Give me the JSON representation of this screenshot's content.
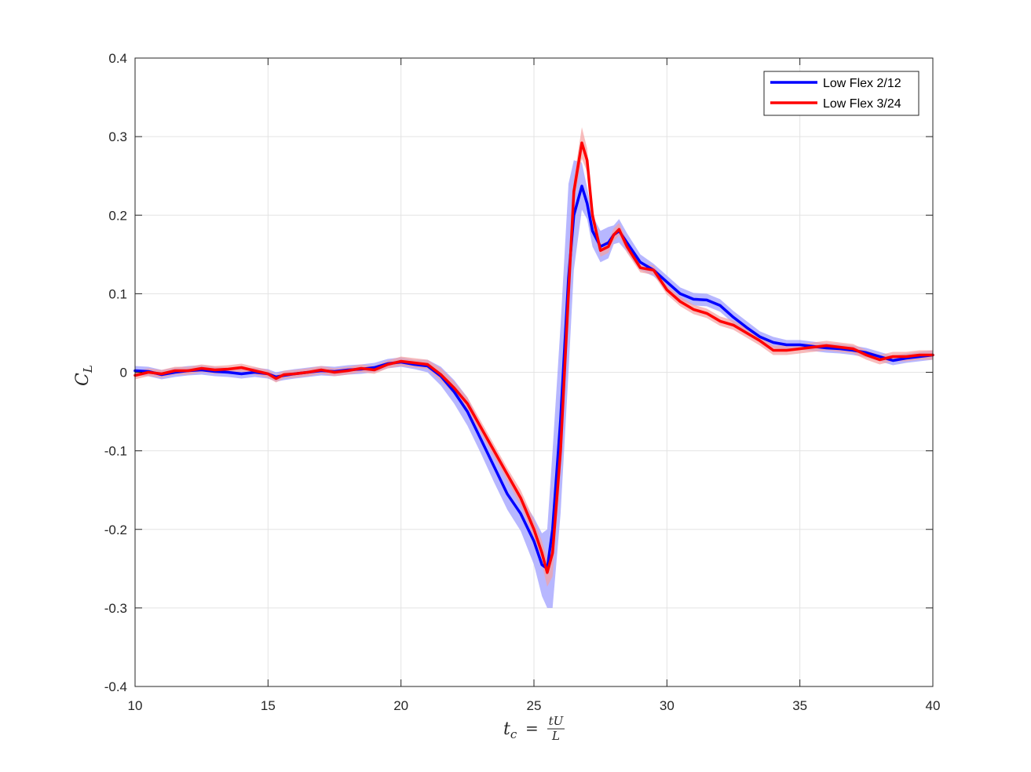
{
  "chart_data": {
    "type": "line",
    "title": "",
    "xlabel": {
      "base": "t",
      "sub": "c",
      "frac_num": "tU",
      "frac_den": "L"
    },
    "ylabel": {
      "base": "C",
      "sub": "L"
    },
    "xlim": [
      10,
      40
    ],
    "ylim": [
      -0.4,
      0.4
    ],
    "xticks": [
      10,
      15,
      20,
      25,
      30,
      35,
      40
    ],
    "yticks": [
      -0.4,
      -0.3,
      -0.2,
      -0.1,
      0,
      0.1,
      0.2,
      0.3,
      0.4
    ],
    "xtick_labels": [
      "10",
      "15",
      "20",
      "25",
      "30",
      "35",
      "40"
    ],
    "ytick_labels": [
      "-0.4",
      "-0.3",
      "-0.2",
      "-0.1",
      "0",
      "0.1",
      "0.2",
      "0.3",
      "0.4"
    ],
    "grid": true,
    "legend_position": "top-right",
    "series": [
      {
        "name": "Low Flex 2/12",
        "color": "#0000ff",
        "band_color": "#9999ff",
        "x": [
          10,
          10.5,
          11,
          11.5,
          12,
          12.5,
          13,
          13.5,
          14,
          14.5,
          15,
          15.3,
          15.6,
          16,
          16.5,
          17,
          17.5,
          18,
          18.5,
          19,
          19.5,
          20,
          20.5,
          21,
          21.5,
          22,
          22.5,
          23,
          23.5,
          24,
          24.5,
          25,
          25.3,
          25.5,
          25.7,
          26,
          26.3,
          26.5,
          26.8,
          27,
          27.2,
          27.5,
          27.8,
          28,
          28.2,
          28.5,
          29,
          29.5,
          30,
          30.5,
          31,
          31.5,
          32,
          32.5,
          33,
          33.5,
          34,
          34.5,
          35,
          35.5,
          36,
          36.5,
          37,
          37.5,
          38,
          38.5,
          39,
          39.5,
          40
        ],
        "y": [
          0.002,
          0.001,
          -0.003,
          0.0,
          0.002,
          0.003,
          0.001,
          0.0,
          -0.002,
          0.0,
          -0.002,
          -0.006,
          -0.004,
          -0.002,
          0.0,
          0.002,
          0.001,
          0.003,
          0.004,
          0.006,
          0.011,
          0.013,
          0.01,
          0.008,
          -0.005,
          -0.025,
          -0.05,
          -0.085,
          -0.12,
          -0.155,
          -0.18,
          -0.215,
          -0.245,
          -0.25,
          -0.2,
          -0.06,
          0.12,
          0.2,
          0.237,
          0.215,
          0.18,
          0.16,
          0.165,
          0.175,
          0.18,
          0.165,
          0.14,
          0.13,
          0.115,
          0.1,
          0.093,
          0.092,
          0.085,
          0.07,
          0.057,
          0.045,
          0.038,
          0.035,
          0.035,
          0.033,
          0.031,
          0.03,
          0.028,
          0.025,
          0.02,
          0.015,
          0.018,
          0.02,
          0.022
        ],
        "band": [
          0.006,
          0.006,
          0.006,
          0.006,
          0.006,
          0.006,
          0.006,
          0.006,
          0.006,
          0.006,
          0.006,
          0.006,
          0.006,
          0.006,
          0.006,
          0.006,
          0.006,
          0.006,
          0.006,
          0.006,
          0.006,
          0.006,
          0.006,
          0.008,
          0.012,
          0.015,
          0.018,
          0.018,
          0.02,
          0.02,
          0.022,
          0.03,
          0.04,
          0.05,
          0.1,
          0.12,
          0.12,
          0.07,
          0.03,
          0.02,
          0.02,
          0.02,
          0.02,
          0.012,
          0.015,
          0.012,
          0.01,
          0.008,
          0.008,
          0.008,
          0.008,
          0.008,
          0.008,
          0.008,
          0.008,
          0.007,
          0.007,
          0.006,
          0.006,
          0.006,
          0.006,
          0.006,
          0.006,
          0.006,
          0.006,
          0.006,
          0.006,
          0.006,
          0.006
        ]
      },
      {
        "name": "Low Flex 3/24",
        "color": "#ff0000",
        "band_color": "#f5a0a0",
        "x": [
          10,
          10.5,
          11,
          11.5,
          12,
          12.5,
          13,
          13.5,
          14,
          14.5,
          15,
          15.3,
          15.6,
          16,
          16.5,
          17,
          17.5,
          18,
          18.5,
          19,
          19.5,
          20,
          20.5,
          21,
          21.5,
          22,
          22.5,
          23,
          23.5,
          24,
          24.5,
          25,
          25.3,
          25.5,
          25.7,
          26,
          26.3,
          26.5,
          26.8,
          27,
          27.2,
          27.5,
          27.8,
          28,
          28.2,
          28.5,
          29,
          29.5,
          30,
          30.5,
          31,
          31.5,
          32,
          32.5,
          33,
          33.5,
          34,
          34.5,
          35,
          35.5,
          36,
          36.5,
          37,
          37.5,
          38,
          38.5,
          39,
          39.5,
          40
        ],
        "y": [
          -0.004,
          0.0,
          -0.002,
          0.002,
          0.002,
          0.005,
          0.003,
          0.004,
          0.006,
          0.002,
          -0.002,
          -0.008,
          -0.003,
          -0.002,
          0.0,
          0.003,
          0.0,
          0.002,
          0.005,
          0.003,
          0.01,
          0.014,
          0.012,
          0.01,
          -0.003,
          -0.02,
          -0.04,
          -0.07,
          -0.1,
          -0.13,
          -0.16,
          -0.2,
          -0.23,
          -0.255,
          -0.23,
          -0.1,
          0.1,
          0.23,
          0.292,
          0.27,
          0.2,
          0.155,
          0.16,
          0.175,
          0.182,
          0.16,
          0.133,
          0.13,
          0.105,
          0.09,
          0.08,
          0.075,
          0.065,
          0.06,
          0.05,
          0.04,
          0.028,
          0.028,
          0.03,
          0.032,
          0.034,
          0.032,
          0.03,
          0.022,
          0.016,
          0.02,
          0.02,
          0.022,
          0.022
        ],
        "band": [
          0.005,
          0.005,
          0.005,
          0.005,
          0.005,
          0.005,
          0.005,
          0.005,
          0.005,
          0.005,
          0.005,
          0.005,
          0.005,
          0.005,
          0.005,
          0.005,
          0.005,
          0.005,
          0.005,
          0.005,
          0.005,
          0.006,
          0.006,
          0.006,
          0.008,
          0.008,
          0.008,
          0.008,
          0.008,
          0.008,
          0.01,
          0.012,
          0.015,
          0.018,
          0.03,
          0.03,
          0.02,
          0.015,
          0.02,
          0.015,
          0.01,
          0.008,
          0.008,
          0.008,
          0.008,
          0.008,
          0.006,
          0.006,
          0.006,
          0.006,
          0.006,
          0.006,
          0.006,
          0.006,
          0.006,
          0.006,
          0.006,
          0.006,
          0.006,
          0.006,
          0.006,
          0.006,
          0.006,
          0.006,
          0.006,
          0.006,
          0.006,
          0.006,
          0.006
        ]
      }
    ]
  }
}
